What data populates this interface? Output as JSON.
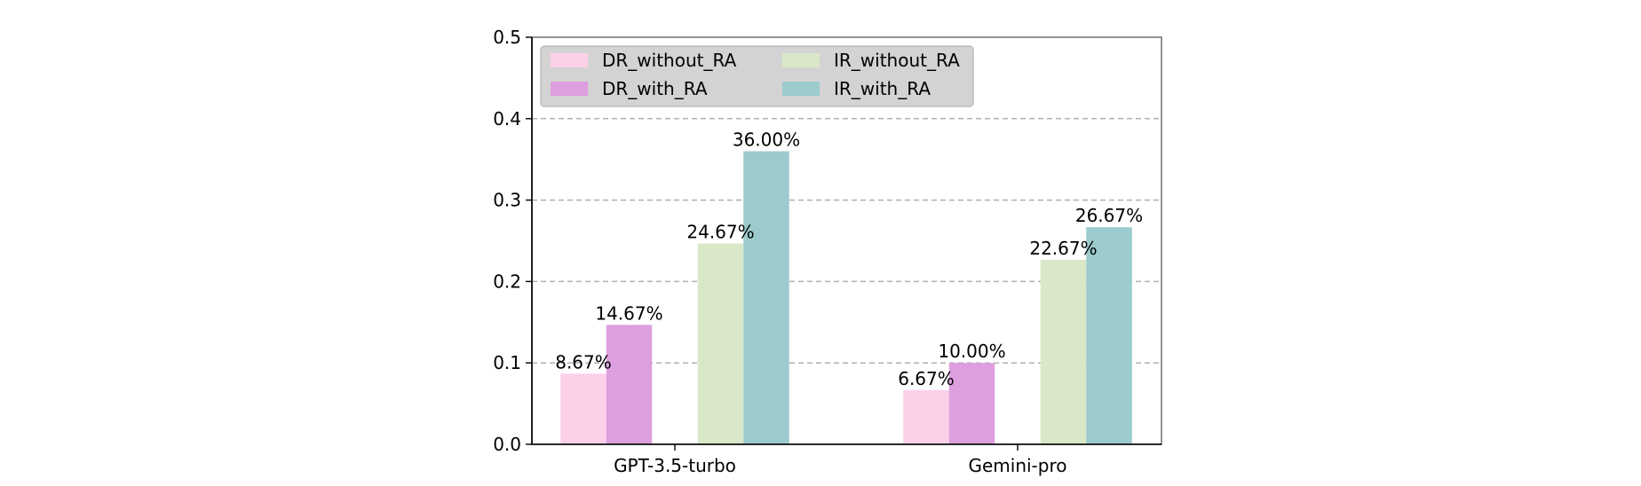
{
  "chart_data": {
    "type": "bar",
    "categories": [
      "GPT-3.5-turbo",
      "Gemini-pro"
    ],
    "series": [
      {
        "name": "DR_without_RA",
        "values": [
          0.0867,
          0.0667
        ],
        "labels": [
          "8.67%",
          "6.67%"
        ],
        "color": "#fdd0e9"
      },
      {
        "name": "DR_with_RA",
        "values": [
          0.1467,
          0.1
        ],
        "labels": [
          "14.67%",
          "10.00%"
        ],
        "color": "#dd9fdf"
      },
      {
        "name": "IR_without_RA",
        "values": [
          0.2467,
          0.2267
        ],
        "labels": [
          "24.67%",
          "22.67%"
        ],
        "color": "#d9e8c8"
      },
      {
        "name": "IR_with_RA",
        "values": [
          0.36,
          0.2667
        ],
        "labels": [
          "36.00%",
          "26.67%"
        ],
        "color": "#9ccbcd"
      }
    ],
    "ylim": [
      0,
      0.5
    ],
    "yticks": [
      "0.0",
      "0.1",
      "0.2",
      "0.3",
      "0.4",
      "0.5"
    ],
    "ytick_values": [
      0,
      0.1,
      0.2,
      0.3,
      0.4,
      0.5
    ],
    "grid": "horizontal dashed",
    "legend": {
      "placement": "top-left",
      "columns": 2,
      "background": "#d3d3d3"
    },
    "title": "",
    "xlabel": "",
    "ylabel": ""
  }
}
